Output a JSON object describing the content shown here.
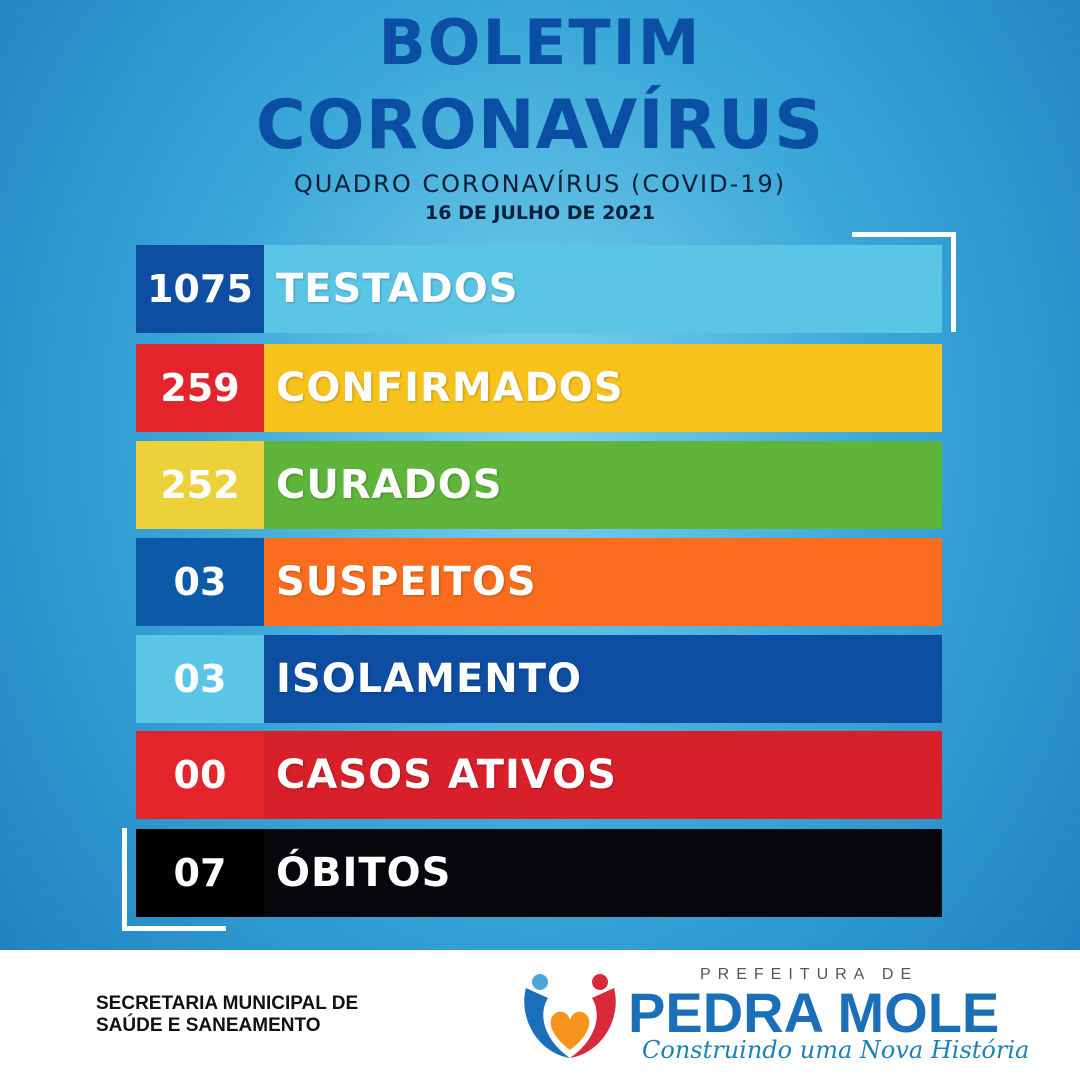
{
  "header": {
    "title_line1": "BOLETIM",
    "title_line2": "CORONAVÍRUS",
    "subtitle": "QUADRO CORONAVÍRUS (COVID-19)",
    "date": "16 DE JULHO DE 2021"
  },
  "rows": [
    {
      "value": "1075",
      "label": "TESTADOS",
      "num_color": "#0d4ea3",
      "bar_color": "#5bc5e6"
    },
    {
      "value": "259",
      "label": "CONFIRMADOS",
      "num_color": "#e3242b",
      "bar_color": "#f8c21c"
    },
    {
      "value": "252",
      "label": "CURADOS",
      "num_color": "#ecd13a",
      "bar_color": "#5fb43a"
    },
    {
      "value": "03",
      "label": "SUSPEITOS",
      "num_color": "#0d5aa8",
      "bar_color": "#fb6d1e"
    },
    {
      "value": "03",
      "label": "ISOLAMENTO",
      "num_color": "#5bc5e6",
      "bar_color": "#0d4ea3"
    },
    {
      "value": "00",
      "label": "CASOS ATIVOS",
      "num_color": "#e3242b",
      "bar_color": "#d8202a"
    },
    {
      "value": "07",
      "label": "ÓBITOS",
      "num_color": "#000000",
      "bar_color": "#05070b"
    }
  ],
  "footer": {
    "secretaria_line1": "SECRETARIA MUNICIPAL DE",
    "secretaria_line2": "SAÚDE E SANEAMENTO",
    "logo_prefix": "PREFEITURA DE",
    "logo_city": "PEDRA MOLE",
    "logo_slogan": "Construindo uma Nova História"
  }
}
